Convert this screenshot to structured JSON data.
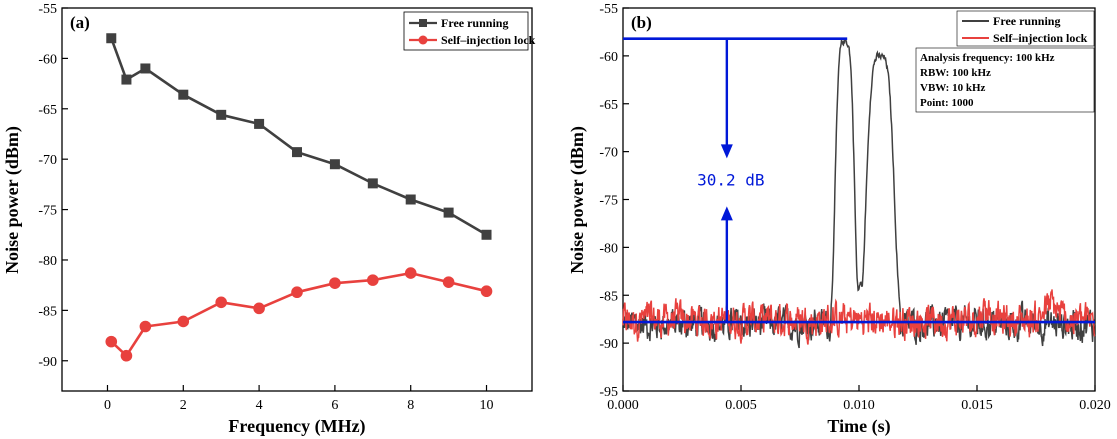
{
  "chart_data": [
    {
      "panel": "(a)",
      "type": "line",
      "xlabel": "Frequency (MHz)",
      "ylabel": "Noise power (dBm)",
      "xlim": [
        -1.2,
        11.2
      ],
      "ylim": [
        -93,
        -55
      ],
      "xticks": [
        0,
        2,
        4,
        6,
        8,
        10
      ],
      "yticks": [
        -55,
        -60,
        -65,
        -70,
        -75,
        -80,
        -85,
        -90
      ],
      "series": [
        {
          "name": "Free running",
          "color": "#404040",
          "marker": "square",
          "x": [
            0.1,
            0.5,
            1,
            2,
            3,
            4,
            5,
            6,
            7,
            8,
            9,
            10
          ],
          "y": [
            -58.0,
            -62.1,
            -61.0,
            -63.6,
            -65.6,
            -66.5,
            -69.3,
            -70.5,
            -72.4,
            -74.0,
            -75.3,
            -77.5
          ]
        },
        {
          "name": "Self–injection lock",
          "color": "#e8413e",
          "marker": "circle",
          "x": [
            0.1,
            0.5,
            1,
            2,
            3,
            4,
            5,
            6,
            7,
            8,
            9,
            10
          ],
          "y": [
            -88.1,
            -89.5,
            -86.6,
            -86.1,
            -84.2,
            -84.8,
            -83.2,
            -82.3,
            -82.0,
            -81.3,
            -82.2,
            -83.1
          ]
        }
      ]
    },
    {
      "panel": "(b)",
      "type": "line",
      "xlabel": "Time (s)",
      "ylabel": "Noise power (dBm)",
      "xlim": [
        0.0,
        0.02
      ],
      "ylim": [
        -95,
        -55
      ],
      "xticks": [
        0.0,
        0.005,
        0.01,
        0.015,
        0.02
      ],
      "xtick_labels": [
        "0.000",
        "0.005",
        "0.010",
        "0.015",
        "0.020"
      ],
      "yticks": [
        -55,
        -60,
        -65,
        -70,
        -75,
        -80,
        -85,
        -90,
        -95
      ],
      "noise_floor_dbm": -88,
      "peaks": [
        {
          "t": 0.0094,
          "y": -58.5
        },
        {
          "t": 0.0109,
          "y": -60.1
        }
      ],
      "notch": {
        "t": 0.01005,
        "y": -83.8
      },
      "series": [
        {
          "name": "Free running",
          "color": "#404040"
        },
        {
          "name": "Self–injection lock",
          "color": "#e8413e"
        }
      ],
      "reference_lines": {
        "upper_dbm": -58.2,
        "lower_dbm": -87.8,
        "upper_span": [
          0.0,
          0.0095
        ],
        "lower_span": [
          0.0,
          0.02
        ],
        "color": "#0018d8"
      },
      "annotation": {
        "text": "30.2 dB",
        "t": 0.0044
      },
      "info_box": [
        "Analysis frequency: 100 kHz",
        "RBW: 100 kHz",
        "VBW: 10 kHz",
        "Point: 1000"
      ]
    }
  ]
}
